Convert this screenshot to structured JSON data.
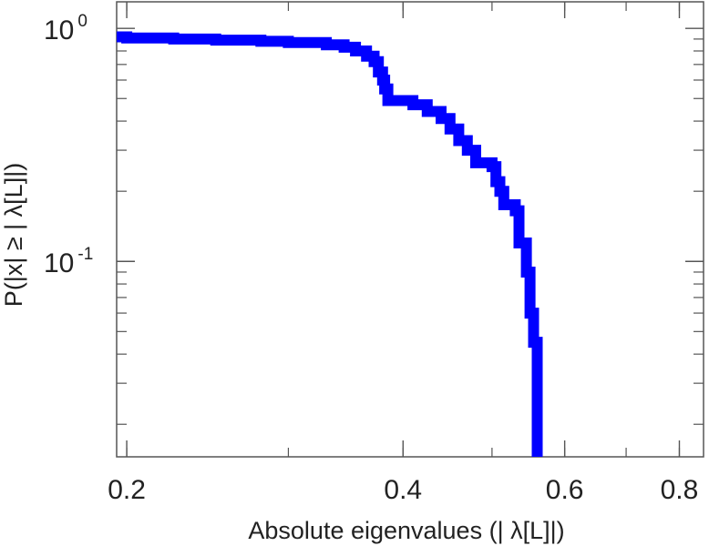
{
  "chart_data": {
    "type": "line",
    "xlabel": "Absolute eigenvalues (|     λ[L]|)",
    "ylabel": "P(|x|  ≥ | λ[L]|)",
    "x_scale": "log",
    "y_scale": "log",
    "xlim": [
      0.195,
      0.85
    ],
    "ylim": [
      0.0145,
      1.3
    ],
    "x_ticks": [
      {
        "value": 0.2,
        "label": "0.2"
      },
      {
        "value": 0.4,
        "label": "0.4"
      },
      {
        "value": 0.6,
        "label": "0.6"
      },
      {
        "value": 0.8,
        "label": "0.8"
      }
    ],
    "y_ticks": [
      {
        "value": 1,
        "base": "10",
        "exp": "0"
      },
      {
        "value": 0.1,
        "base": "10",
        "exp": "-1"
      }
    ],
    "grid": false,
    "series": [
      {
        "color": "#0000ff",
        "step": true,
        "x": [
          0.195,
          0.2,
          0.225,
          0.25,
          0.28,
          0.3,
          0.33,
          0.345,
          0.355,
          0.365,
          0.372,
          0.376,
          0.38,
          0.382,
          0.385,
          0.41,
          0.425,
          0.44,
          0.45,
          0.46,
          0.47,
          0.48,
          0.5,
          0.505,
          0.51,
          0.515,
          0.53,
          0.535,
          0.545,
          0.55,
          0.555,
          0.56
        ],
        "y": [
          0.92,
          0.91,
          0.9,
          0.89,
          0.88,
          0.87,
          0.85,
          0.83,
          0.8,
          0.76,
          0.72,
          0.65,
          0.6,
          0.55,
          0.49,
          0.47,
          0.44,
          0.41,
          0.37,
          0.33,
          0.3,
          0.265,
          0.255,
          0.22,
          0.2,
          0.175,
          0.165,
          0.12,
          0.09,
          0.06,
          0.045,
          0.0145
        ]
      }
    ]
  }
}
